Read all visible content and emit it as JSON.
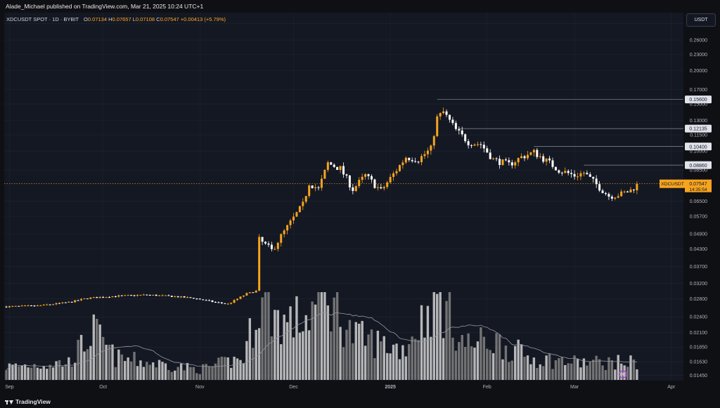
{
  "header": {
    "publisher_line": "Alade_Michael published on TradingView.com, Mar 21, 2025 10:24 UTC+1"
  },
  "symbol_bar": {
    "name": "XDCUSDT SPOT · 1D · BYBIT",
    "open_label": "O",
    "open": "0.07134",
    "high_label": "H",
    "high": "0.07657",
    "low_label": "L",
    "low": "0.07108",
    "close_label": "C",
    "close": "0.07547",
    "change": "+0.00413 (+5.79%)"
  },
  "currency_button": "USDT",
  "footer": {
    "logo_text": "TradingView"
  },
  "colors": {
    "up": "#f7a41f",
    "down": "#ffffff",
    "grid": "#1f2432",
    "hline": "#8a8e99",
    "volume_up": "#c9c9c9",
    "volume_down": "#7d7d7d",
    "ma": "#9598a1",
    "last_price": "#f7a41f"
  },
  "chart_data": {
    "type": "candlestick",
    "symbol": "XDCUSDT",
    "y_scale": "log",
    "ylim": [
      0.0142,
      0.31
    ],
    "y_ticks": [
      "0.30000",
      "0.26000",
      "0.23000",
      "0.20000",
      "0.17000",
      "0.15000",
      "0.13000",
      "0.11500",
      "0.10000",
      "0.08500",
      "0.06500",
      "0.05700",
      "0.04900",
      "0.04300",
      "0.03700",
      "0.03200",
      "0.02800",
      "0.02400",
      "0.02100",
      "0.01850",
      "0.01630",
      "0.01450"
    ],
    "x_labels": [
      "Sep",
      "Oct",
      "Nov",
      "Dec",
      "2025",
      "Feb",
      "Mar",
      "Apr"
    ],
    "price_levels": [
      {
        "label": "0.15600",
        "value": 0.156,
        "from": "2025-01-16"
      },
      {
        "label": "0.12135",
        "value": 0.12135,
        "from": "2025-01-23"
      },
      {
        "label": "0.10400",
        "value": 0.104,
        "from": "2025-02-16"
      },
      {
        "label": "0.08860",
        "value": 0.0886,
        "from": "2025-03-04"
      }
    ],
    "last_price": {
      "symbol": "XDCUSDT",
      "value_label": "0.07547",
      "countdown": "14:35:54",
      "value": 0.07547
    },
    "price_keypoints": [
      {
        "date": "2024-08-31",
        "close": 0.0262
      },
      {
        "date": "2024-09-10",
        "close": 0.0264
      },
      {
        "date": "2024-09-20",
        "close": 0.0272
      },
      {
        "date": "2024-09-26",
        "close": 0.0282
      },
      {
        "date": "2024-10-05",
        "close": 0.0287
      },
      {
        "date": "2024-10-15",
        "close": 0.029
      },
      {
        "date": "2024-10-22",
        "close": 0.0287
      },
      {
        "date": "2024-10-30",
        "close": 0.0282
      },
      {
        "date": "2024-11-06",
        "close": 0.0272
      },
      {
        "date": "2024-11-10",
        "close": 0.0268
      },
      {
        "date": "2024-11-16",
        "close": 0.0293
      },
      {
        "date": "2024-11-19",
        "close": 0.03
      },
      {
        "date": "2024-11-20",
        "close": 0.0465
      },
      {
        "date": "2024-11-24",
        "close": 0.0425
      },
      {
        "date": "2024-11-27",
        "close": 0.048
      },
      {
        "date": "2024-11-30",
        "close": 0.054
      },
      {
        "date": "2024-12-04",
        "close": 0.063
      },
      {
        "date": "2024-12-06",
        "close": 0.076
      },
      {
        "date": "2024-12-09",
        "close": 0.072
      },
      {
        "date": "2024-12-12",
        "close": 0.09
      },
      {
        "date": "2024-12-16",
        "close": 0.086
      },
      {
        "date": "2024-12-20",
        "close": 0.072
      },
      {
        "date": "2024-12-24",
        "close": 0.081
      },
      {
        "date": "2024-12-29",
        "close": 0.071
      },
      {
        "date": "2025-01-02",
        "close": 0.082
      },
      {
        "date": "2025-01-06",
        "close": 0.095
      },
      {
        "date": "2025-01-10",
        "close": 0.093
      },
      {
        "date": "2025-01-14",
        "close": 0.102
      },
      {
        "date": "2025-01-16",
        "close": 0.133
      },
      {
        "date": "2025-01-18",
        "close": 0.14
      },
      {
        "date": "2025-01-22",
        "close": 0.12
      },
      {
        "date": "2025-01-26",
        "close": 0.108
      },
      {
        "date": "2025-01-30",
        "close": 0.106
      },
      {
        "date": "2025-02-03",
        "close": 0.093
      },
      {
        "date": "2025-02-08",
        "close": 0.089
      },
      {
        "date": "2025-02-12",
        "close": 0.095
      },
      {
        "date": "2025-02-16",
        "close": 0.099
      },
      {
        "date": "2025-02-20",
        "close": 0.092
      },
      {
        "date": "2025-02-24",
        "close": 0.085
      },
      {
        "date": "2025-03-01",
        "close": 0.081
      },
      {
        "date": "2025-03-04",
        "close": 0.083
      },
      {
        "date": "2025-03-08",
        "close": 0.075
      },
      {
        "date": "2025-03-12",
        "close": 0.068
      },
      {
        "date": "2025-03-16",
        "close": 0.069
      },
      {
        "date": "2025-03-19",
        "close": 0.0713
      },
      {
        "date": "2025-03-21",
        "close": 0.07547
      }
    ],
    "volume_note": "relative daily volume bars (unlabeled axis)",
    "volume_keypoints": [
      {
        "date": "2024-08-31",
        "v": 0.15
      },
      {
        "date": "2024-09-20",
        "v": 0.2
      },
      {
        "date": "2024-09-28",
        "v": 0.55
      },
      {
        "date": "2024-10-05",
        "v": 0.25
      },
      {
        "date": "2024-11-01",
        "v": 0.12
      },
      {
        "date": "2024-11-15",
        "v": 0.25
      },
      {
        "date": "2024-11-20",
        "v": 0.9
      },
      {
        "date": "2024-11-28",
        "v": 0.65
      },
      {
        "date": "2024-12-05",
        "v": 0.7
      },
      {
        "date": "2024-12-11",
        "v": 1.0
      },
      {
        "date": "2024-12-20",
        "v": 0.5
      },
      {
        "date": "2025-01-05",
        "v": 0.35
      },
      {
        "date": "2025-01-16",
        "v": 0.95
      },
      {
        "date": "2025-01-25",
        "v": 0.4
      },
      {
        "date": "2025-02-03",
        "v": 0.45
      },
      {
        "date": "2025-02-15",
        "v": 0.25
      },
      {
        "date": "2025-03-01",
        "v": 0.2
      },
      {
        "date": "2025-03-21",
        "v": 0.2
      }
    ]
  }
}
